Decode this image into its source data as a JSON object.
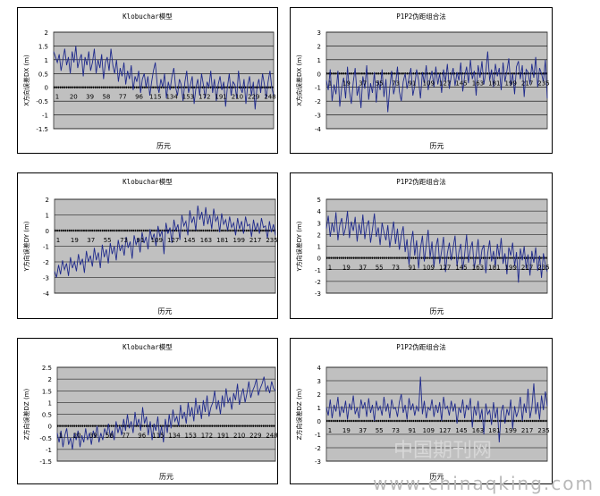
{
  "watermark_url": "www.chinaqking.com",
  "watermark_cn": "中国期刊网",
  "chart_data": [
    {
      "type": "line",
      "title": "Klobuchar模型",
      "ylabel": "X方向误差DX (m)",
      "xlabel": "历元",
      "ylim": [
        -1.5,
        2
      ],
      "yticks": [
        "2",
        "1.5",
        "1",
        "0.5",
        "0",
        "-0.5",
        "-1",
        "-1.5"
      ],
      "x_tick_labels": [
        "1",
        "20",
        "39",
        "58",
        "77",
        "96",
        "115",
        "134",
        "153",
        "172",
        "191",
        "210",
        "229",
        "248"
      ],
      "colors": {
        "series": "#1f2a8c",
        "plot_bg": "#c0c0c0"
      },
      "series": [
        {
          "values": [
            1.3,
            1.1,
            0.9,
            1.2,
            0.6,
            1.0,
            1.4,
            0.8,
            1.1,
            0.5,
            1.3,
            0.9,
            1.5,
            0.7,
            1.0,
            1.2,
            0.4,
            1.1,
            0.8,
            1.3,
            0.6,
            0.9,
            1.4,
            0.5,
            1.0,
            0.7,
            1.2,
            0.3,
            0.9,
            1.1,
            0.6,
            1.4,
            0.8,
            0.5,
            1.0,
            0.2,
            0.7,
            0.4,
            0.9,
            0.1,
            0.6,
            0.3,
            0.8,
            -0.1,
            0.4,
            0.2,
            0.6,
            -0.2,
            0.3,
            0.5,
            0.0,
            0.4,
            -0.3,
            0.2,
            0.6,
            0.9,
            0.1,
            -0.2,
            0.3,
            0.0,
            0.5,
            -0.4,
            0.2,
            -0.1,
            0.4,
            0.7,
            0.0,
            -0.3,
            0.3,
            0.1,
            -0.5,
            0.2,
            0.6,
            -0.2,
            0.1,
            0.4,
            -0.6,
            0.0,
            0.3,
            -0.3,
            0.5,
            0.1,
            -0.4,
            0.2,
            0.0,
            0.6,
            -0.2,
            0.3,
            -0.5,
            0.1,
            0.4,
            -0.1,
            0.2,
            -0.7,
            0.0,
            0.5,
            -0.3,
            0.2,
            0.1,
            -0.4,
            0.6,
            0.0,
            -0.2,
            0.3,
            -0.6,
            0.1,
            0.4,
            -0.3,
            0.2,
            -0.8,
            0.0,
            0.3,
            -0.2,
            0.5,
            0.1,
            -0.4,
            0.2,
            0.6,
            0.0,
            -0.3
          ]
        }
      ]
    },
    {
      "type": "line",
      "title": "P1P2伪距组合法",
      "ylabel": "X方向误差DX (m)",
      "xlabel": "历元",
      "ylim": [
        -4,
        3
      ],
      "yticks": [
        "3",
        "2",
        "1",
        "0",
        "-1",
        "-2",
        "-3",
        "-4"
      ],
      "x_tick_labels": [
        "1",
        "19",
        "37",
        "55",
        "73",
        "91",
        "109",
        "127",
        "145",
        "163",
        "181",
        "199",
        "217",
        "235"
      ],
      "colors": {
        "series": "#1f2a8c",
        "plot_bg": "#c0c0c0"
      },
      "series": [
        {
          "values": [
            -0.5,
            -1.2,
            0.3,
            -2.0,
            -0.8,
            -1.5,
            0.2,
            -2.4,
            -1.0,
            -0.3,
            -1.8,
            0.5,
            -1.3,
            -2.2,
            -0.6,
            0.4,
            -1.6,
            -0.9,
            -2.5,
            -0.2,
            -1.1,
            0.6,
            -1.9,
            -0.7,
            -1.4,
            0.1,
            -2.1,
            -0.5,
            -1.2,
            0.3,
            -1.7,
            -0.4,
            -2.8,
            -1.0,
            0.2,
            -1.5,
            -0.8,
            0.5,
            -1.3,
            -2.0,
            -0.6,
            0.0,
            -1.1,
            -0.3,
            0.4,
            -1.6,
            -0.9,
            0.3,
            -0.5,
            -1.8,
            0.1,
            -0.7,
            0.6,
            -1.2,
            -0.4,
            0.2,
            -1.0,
            0.5,
            -0.8,
            0.0,
            -1.4,
            0.3,
            -0.6,
            0.7,
            -1.1,
            -0.2,
            0.4,
            -0.9,
            0.1,
            -0.5,
            0.8,
            -1.3,
            -0.2,
            0.5,
            -0.7,
            1.0,
            -0.4,
            0.2,
            -1.6,
            0.6,
            -0.3,
            0.9,
            -0.8,
            0.1,
            1.6,
            -0.5,
            0.3,
            -1.0,
            0.7,
            -0.2,
            0.4,
            -1.2,
            0.8,
            -0.6,
            0.2,
            1.1,
            -0.9,
            0.0,
            -1.5,
            0.5,
            0.9,
            -0.4,
            0.6,
            -1.7,
            0.3,
            0.1,
            -0.8,
            0.7,
            -0.3,
            1.2,
            -1.0,
            0.4,
            0.0,
            -0.6,
            1.0,
            -1.8
          ]
        }
      ]
    },
    {
      "type": "line",
      "title": "Klobuchar模型",
      "ylabel": "Y方向误差DY (m)",
      "xlabel": "历元",
      "ylim": [
        -4,
        2
      ],
      "yticks": [
        "2",
        "1",
        "0",
        "-1",
        "-2",
        "-3",
        "-4"
      ],
      "x_tick_labels": [
        "1",
        "19",
        "37",
        "55",
        "73",
        "91",
        "109",
        "127",
        "145",
        "163",
        "181",
        "199",
        "217",
        "235"
      ],
      "colors": {
        "series": "#1f2a8c",
        "plot_bg": "#c0c0c0"
      },
      "series": [
        {
          "values": [
            -2.6,
            -3.0,
            -2.2,
            -2.8,
            -1.9,
            -2.5,
            -2.1,
            -2.9,
            -1.7,
            -2.4,
            -2.0,
            -2.6,
            -1.5,
            -2.2,
            -1.8,
            -2.7,
            -1.3,
            -2.0,
            -1.6,
            -2.3,
            -1.1,
            -1.9,
            -1.4,
            -2.4,
            -0.9,
            -1.7,
            -1.2,
            -2.1,
            -0.8,
            -1.5,
            -1.0,
            -1.9,
            -0.6,
            -1.3,
            -0.9,
            -1.6,
            -0.4,
            -1.1,
            -0.7,
            -1.8,
            -0.3,
            -0.9,
            -0.5,
            -1.4,
            -0.1,
            -0.8,
            -0.4,
            -1.2,
            0.1,
            -0.6,
            -0.2,
            -1.0,
            0.3,
            -0.4,
            0.0,
            -1.5,
            0.5,
            -0.2,
            0.2,
            -0.8,
            0.7,
            0.0,
            0.4,
            -0.6,
            1.0,
            0.3,
            0.6,
            -0.3,
            1.3,
            0.5,
            0.9,
            0.0,
            1.6,
            0.7,
            1.2,
            0.3,
            1.5,
            0.4,
            1.0,
            0.1,
            1.4,
            0.6,
            0.9,
            -0.1,
            1.1,
            0.4,
            0.7,
            0.0,
            0.9,
            0.2,
            0.5,
            -0.3,
            0.8,
            0.1,
            0.6,
            -0.2,
            0.9,
            0.3,
            0.4,
            -0.4,
            0.7,
            0.0,
            0.5,
            -0.2,
            0.8,
            0.2,
            0.3,
            -0.5,
            0.6,
            -0.1,
            0.4,
            -0.3
          ]
        }
      ]
    },
    {
      "type": "line",
      "title": "P1P2伪距组合法",
      "ylabel": "Y方向误差DY (m)",
      "xlabel": "历元",
      "ylim": [
        -3,
        5
      ],
      "yticks": [
        "5",
        "4",
        "3",
        "2",
        "1",
        "0",
        "-1",
        "-2",
        "-3"
      ],
      "x_tick_labels": [
        "1",
        "19",
        "37",
        "55",
        "73",
        "91",
        "109",
        "127",
        "145",
        "163",
        "181",
        "199",
        "217",
        "235"
      ],
      "colors": {
        "series": "#1f2a8c",
        "plot_bg": "#c0c0c0"
      },
      "series": [
        {
          "values": [
            2.5,
            3.6,
            1.8,
            3.0,
            2.2,
            3.9,
            1.5,
            2.8,
            3.4,
            1.9,
            2.6,
            4.0,
            1.7,
            3.1,
            2.3,
            3.5,
            1.4,
            2.9,
            2.0,
            3.7,
            1.6,
            2.7,
            3.2,
            1.3,
            2.4,
            3.8,
            1.8,
            2.6,
            1.1,
            3.0,
            2.2,
            1.5,
            2.8,
            0.9,
            2.0,
            3.1,
            1.2,
            2.5,
            0.7,
            1.9,
            2.7,
            0.5,
            1.6,
            -0.6,
            1.2,
            2.3,
            0.2,
            1.5,
            -0.9,
            0.8,
            1.9,
            -0.3,
            1.1,
            2.4,
            0.0,
            1.4,
            -0.8,
            0.9,
            1.7,
            -0.5,
            0.6,
            1.8,
            -1.2,
            0.4,
            1.3,
            -0.2,
            0.9,
            1.9,
            -0.7,
            0.5,
            1.2,
            -1.0,
            0.3,
            2.0,
            -0.4,
            0.8,
            1.4,
            -0.9,
            0.2,
            1.6,
            -0.6,
            0.7,
            1.1,
            -1.3,
            0.4,
            1.5,
            -0.3,
            0.6,
            -0.8,
            1.2,
            0.1,
            1.7,
            -0.5,
            0.4,
            -1.4,
            0.9,
            0.2,
            1.3,
            -0.7,
            0.5,
            -2.1,
            0.8,
            -0.2,
            1.0,
            -0.9,
            0.3,
            -1.5,
            0.6,
            -0.4,
            0.9,
            -1.1,
            0.2,
            -1.7,
            0.4,
            -0.6,
            -1.2
          ]
        }
      ]
    },
    {
      "type": "line",
      "title": "Klobuchar模型",
      "ylabel": "Z方向误差DZ (m)",
      "xlabel": "历元",
      "ylim": [
        -1.5,
        2.5
      ],
      "yticks": [
        "2.5",
        "2",
        "1.5",
        "1",
        "0.5",
        "0",
        "-0.5",
        "-1",
        "-1.5"
      ],
      "x_tick_labels": [
        "1",
        "20",
        "39",
        "58",
        "77",
        "96",
        "115",
        "134",
        "153",
        "172",
        "191",
        "210",
        "229",
        "248"
      ],
      "colors": {
        "series": "#1f2a8c",
        "plot_bg": "#c0c0c0"
      },
      "series": [
        {
          "values": [
            -0.3,
            -0.7,
            -0.2,
            -0.9,
            -0.4,
            -0.1,
            -0.8,
            -0.5,
            -1.0,
            -0.3,
            -0.6,
            -0.2,
            -0.9,
            -0.4,
            -0.7,
            -0.1,
            -0.6,
            -0.3,
            -0.8,
            -0.2,
            -0.5,
            0.0,
            -0.7,
            -0.3,
            -0.6,
            -0.1,
            -0.4,
            0.1,
            -0.5,
            -0.2,
            -0.6,
            0.2,
            -0.3,
            0.0,
            -0.4,
            0.3,
            -0.2,
            0.5,
            -0.1,
            0.2,
            -0.3,
            0.6,
            0.0,
            0.3,
            -0.2,
            0.8,
            0.1,
            0.4,
            -0.4,
            0.2,
            -0.6,
            0.1,
            -0.2,
            0.4,
            -0.5,
            0.0,
            -0.7,
            0.3,
            -0.3,
            0.5,
            -0.1,
            0.7,
            0.2,
            0.4,
            0.0,
            0.9,
            0.3,
            0.6,
            0.1,
            1.0,
            0.4,
            0.8,
            0.2,
            1.2,
            0.5,
            0.9,
            0.3,
            1.1,
            0.6,
            1.3,
            0.4,
            0.8,
            1.0,
            1.5,
            0.7,
            1.1,
            0.5,
            1.3,
            0.8,
            1.6,
            1.0,
            1.2,
            0.7,
            1.4,
            1.1,
            1.8,
            0.9,
            1.3,
            1.6,
            1.0,
            1.4,
            1.9,
            1.2,
            1.5,
            1.7,
            2.0,
            1.3,
            1.6,
            1.8,
            2.1,
            1.5,
            1.7,
            1.4,
            1.9,
            1.6,
            1.5
          ]
        }
      ]
    },
    {
      "type": "line",
      "title": "P1P2伪距组合法",
      "ylabel": "Z方向误差DZ (m)",
      "xlabel": "历元",
      "ylim": [
        -3,
        4
      ],
      "yticks": [
        "4",
        "3",
        "2",
        "1",
        "0",
        "-1",
        "-2",
        "-3"
      ],
      "x_tick_labels": [
        "1",
        "19",
        "37",
        "55",
        "73",
        "91",
        "109",
        "127",
        "145",
        "163",
        "181",
        "199",
        "217",
        "235"
      ],
      "colors": {
        "series": "#1f2a8c",
        "plot_bg": "#c0c0c0"
      },
      "series": [
        {
          "values": [
            1.0,
            0.4,
            1.6,
            0.2,
            1.2,
            0.7,
            1.8,
            0.3,
            1.1,
            0.6,
            1.5,
            0.1,
            1.3,
            0.8,
            1.9,
            0.5,
            1.0,
            0.2,
            1.6,
            0.9,
            1.4,
            0.3,
            1.7,
            0.6,
            1.2,
            0.0,
            1.5,
            0.8,
            1.1,
            0.4,
            1.8,
            0.7,
            1.3,
            0.2,
            1.6,
            0.9,
            1.0,
            0.3,
            1.4,
            2.0,
            0.6,
            1.2,
            0.1,
            1.7,
            0.8,
            1.3,
            0.4,
            1.1,
            0.7,
            3.3,
            0.5,
            1.5,
            0.2,
            1.0,
            0.8,
            1.6,
            0.3,
            1.2,
            0.6,
            1.4,
            0.0,
            1.8,
            0.9,
            1.1,
            0.4,
            1.5,
            0.7,
            1.3,
            -0.2,
            1.0,
            0.6,
            1.6,
            0.2,
            1.2,
            0.8,
            1.7,
            -0.5,
            1.1,
            0.4,
            1.5,
            0.1,
            0.9,
            -1.0,
            1.3,
            0.5,
            0.8,
            -0.3,
            1.4,
            0.2,
            1.0,
            -1.6,
            0.7,
            1.2,
            -0.2,
            0.9,
            0.4,
            1.6,
            -0.6,
            1.1,
            0.3,
            0.8,
            1.8,
            0.0,
            1.3,
            0.6,
            2.4,
            0.2,
            1.0,
            2.8,
            0.5,
            1.4,
            0.1,
            1.9,
            0.8,
            2.2,
            1.1
          ]
        }
      ]
    }
  ]
}
